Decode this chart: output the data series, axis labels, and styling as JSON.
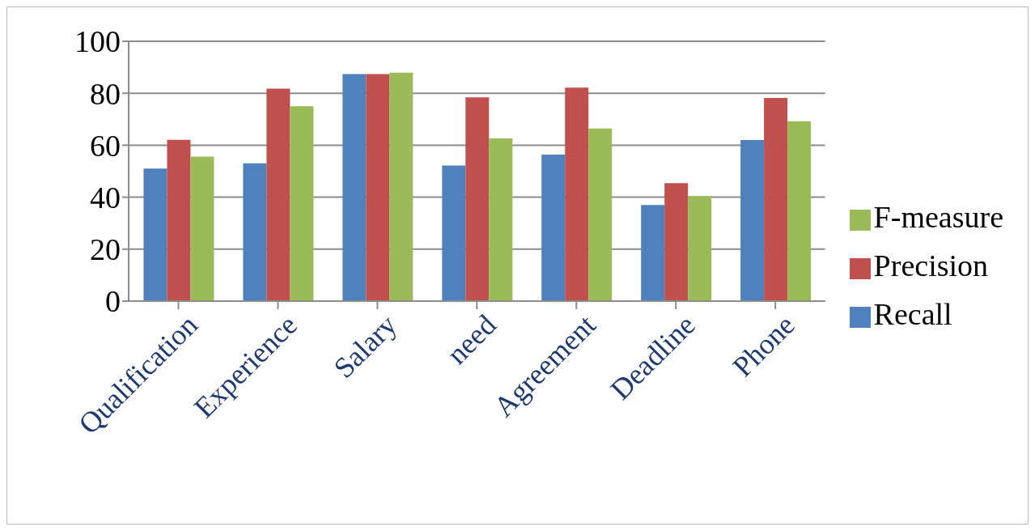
{
  "chart_data": {
    "type": "bar",
    "categories": [
      "Qualification",
      "Experience",
      "Salary",
      "need",
      "Agreement",
      "Deadline",
      "Phone"
    ],
    "series": [
      {
        "name": "Recall",
        "color": "#4f81bd",
        "values": [
          51,
          53,
          87.4,
          52.2,
          56.4,
          37,
          62
        ]
      },
      {
        "name": "Precision",
        "color": "#c0504d",
        "values": [
          62.1,
          81.8,
          87.4,
          78.4,
          82.2,
          45.4,
          78.2
        ]
      },
      {
        "name": "F-measure",
        "color": "#9bbb59",
        "values": [
          55.6,
          75,
          87.9,
          62.6,
          66.4,
          40.4,
          69.2
        ]
      }
    ],
    "ylim": [
      0,
      100
    ],
    "yticks": [
      0,
      20,
      40,
      60,
      80,
      100
    ],
    "grid": "y",
    "legend": "right"
  }
}
